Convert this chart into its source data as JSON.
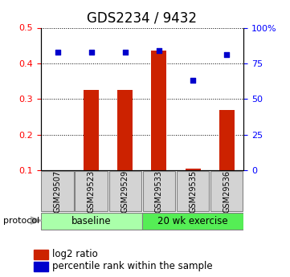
{
  "title": "GDS2234 / 9432",
  "samples": [
    "GSM29507",
    "GSM29523",
    "GSM29529",
    "GSM29533",
    "GSM29535",
    "GSM29536"
  ],
  "log2_ratio": [
    0.0,
    0.325,
    0.325,
    0.435,
    0.105,
    0.27
  ],
  "percentile_rank": [
    83,
    83,
    83,
    84,
    63,
    81
  ],
  "ylim_left": [
    0.1,
    0.5
  ],
  "ylim_right": [
    0,
    100
  ],
  "yticks_left": [
    0.1,
    0.2,
    0.3,
    0.4,
    0.5
  ],
  "yticks_right": [
    0,
    25,
    50,
    75,
    100
  ],
  "ytick_labels_right": [
    "0",
    "25",
    "50",
    "75",
    "100%"
  ],
  "groups": [
    {
      "label": "baseline",
      "start": 0,
      "end": 3,
      "color": "#aaffaa"
    },
    {
      "label": "20 wk exercise",
      "start": 3,
      "end": 6,
      "color": "#55ee55"
    }
  ],
  "bar_color": "#cc2200",
  "dot_color": "#0000cc",
  "sample_box_color": "#d3d3d3",
  "protocol_label": "protocol",
  "legend_bar_label": "log2 ratio",
  "legend_dot_label": "percentile rank within the sample",
  "title_fontsize": 12,
  "tick_fontsize": 8,
  "label_fontsize": 8.5
}
